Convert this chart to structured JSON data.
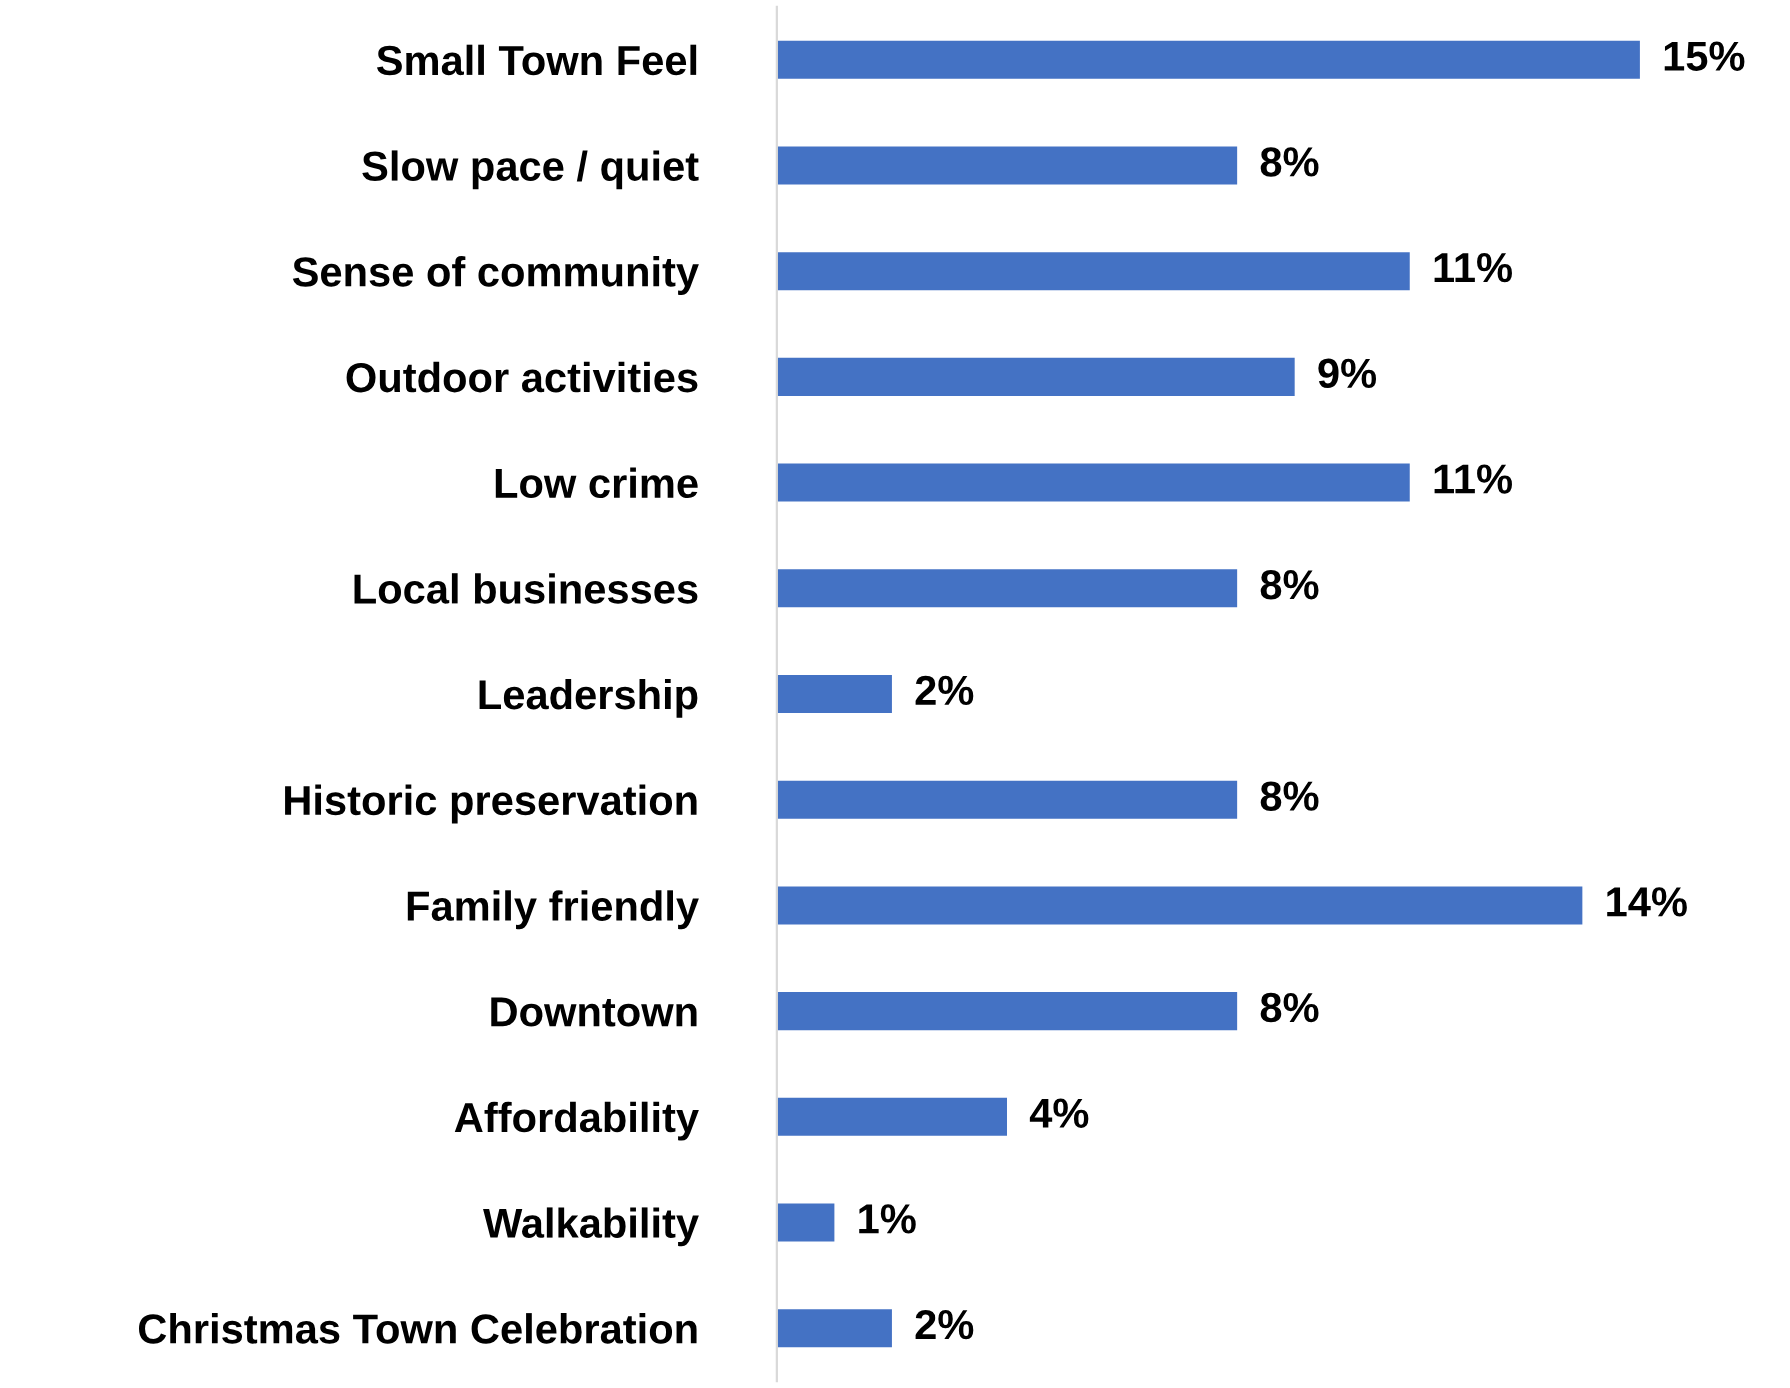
{
  "chart_data": {
    "type": "bar",
    "orientation": "horizontal",
    "categories": [
      "Small Town Feel",
      "Slow pace / quiet",
      "Sense of community",
      "Outdoor activities",
      "Low crime",
      "Local businesses",
      "Leadership",
      "Historic preservation",
      "Family friendly",
      "Downtown",
      "Affordability",
      "Walkability",
      "Christmas Town Celebration"
    ],
    "values": [
      15,
      8,
      11,
      9,
      11,
      8,
      2,
      8,
      14,
      8,
      4,
      1,
      2
    ],
    "value_labels": [
      "15%",
      "8%",
      "11%",
      "9%",
      "11%",
      "8%",
      "2%",
      "8%",
      "14%",
      "8%",
      "4%",
      "1%",
      "2%"
    ],
    "color": "#4472c4",
    "grid": false,
    "legend": false
  }
}
